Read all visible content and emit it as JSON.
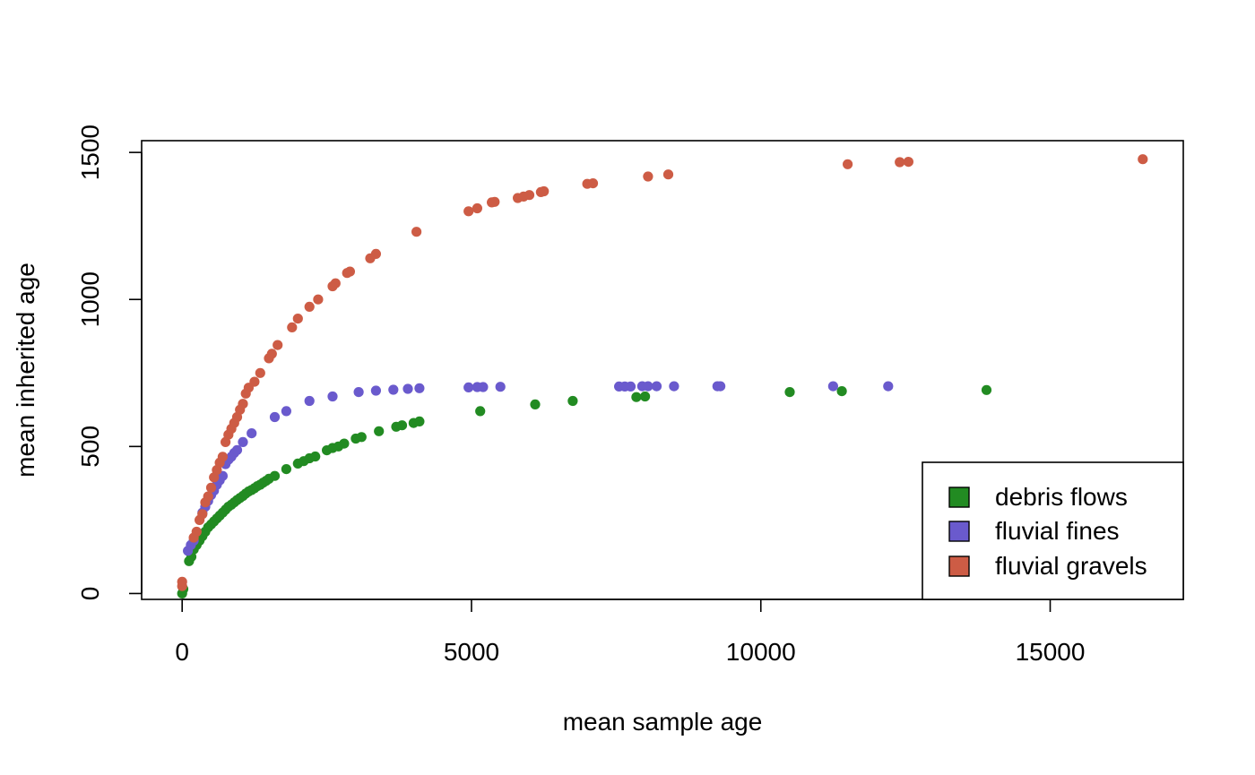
{
  "chart_data": {
    "type": "scatter",
    "xlabel": "mean sample age",
    "ylabel": "mean inherited age",
    "xlim": [
      -700,
      17300
    ],
    "ylim": [
      -20,
      1540
    ],
    "xticks": [
      0,
      5000,
      10000,
      15000
    ],
    "xtick_labels": [
      "0",
      "5000",
      "10000",
      "15000"
    ],
    "yticks": [
      0,
      500,
      1000,
      1500
    ],
    "ytick_labels": [
      "0",
      "500",
      "1000",
      "1500"
    ],
    "grid": false,
    "legend_position": "bottom-right",
    "series": [
      {
        "name": "debris flows",
        "color": "#228b22",
        "points": [
          [
            0,
            0
          ],
          [
            20,
            15
          ],
          [
            120,
            110
          ],
          [
            160,
            125
          ],
          [
            200,
            150
          ],
          [
            250,
            165
          ],
          [
            300,
            180
          ],
          [
            350,
            195
          ],
          [
            400,
            210
          ],
          [
            450,
            225
          ],
          [
            500,
            235
          ],
          [
            550,
            245
          ],
          [
            600,
            255
          ],
          [
            650,
            265
          ],
          [
            700,
            275
          ],
          [
            750,
            285
          ],
          [
            800,
            295
          ],
          [
            850,
            302
          ],
          [
            900,
            310
          ],
          [
            950,
            318
          ],
          [
            1000,
            325
          ],
          [
            1050,
            332
          ],
          [
            1100,
            340
          ],
          [
            1150,
            347
          ],
          [
            1200,
            352
          ],
          [
            1250,
            358
          ],
          [
            1300,
            365
          ],
          [
            1350,
            370
          ],
          [
            1400,
            377
          ],
          [
            1450,
            383
          ],
          [
            1500,
            390
          ],
          [
            1600,
            400
          ],
          [
            1800,
            423
          ],
          [
            2000,
            442
          ],
          [
            2100,
            450
          ],
          [
            2200,
            460
          ],
          [
            2300,
            466
          ],
          [
            2500,
            487
          ],
          [
            2600,
            495
          ],
          [
            2700,
            500
          ],
          [
            2800,
            510
          ],
          [
            3000,
            527
          ],
          [
            3100,
            532
          ],
          [
            3400,
            552
          ],
          [
            3700,
            567
          ],
          [
            3800,
            572
          ],
          [
            4000,
            580
          ],
          [
            4100,
            585
          ],
          [
            5150,
            620
          ],
          [
            6100,
            643
          ],
          [
            6750,
            655
          ],
          [
            7850,
            668
          ],
          [
            8000,
            670
          ],
          [
            10500,
            685
          ],
          [
            11400,
            688
          ],
          [
            13900,
            692
          ]
        ]
      },
      {
        "name": "fluvial fines",
        "color": "#6a5acd",
        "points": [
          [
            100,
            145
          ],
          [
            150,
            165
          ],
          [
            200,
            180
          ],
          [
            350,
            275
          ],
          [
            400,
            295
          ],
          [
            450,
            315
          ],
          [
            500,
            335
          ],
          [
            550,
            350
          ],
          [
            600,
            370
          ],
          [
            650,
            385
          ],
          [
            700,
            400
          ],
          [
            750,
            440
          ],
          [
            800,
            455
          ],
          [
            850,
            465
          ],
          [
            900,
            478
          ],
          [
            950,
            488
          ],
          [
            1050,
            515
          ],
          [
            1200,
            545
          ],
          [
            1600,
            600
          ],
          [
            1800,
            620
          ],
          [
            2200,
            655
          ],
          [
            2600,
            670
          ],
          [
            3050,
            685
          ],
          [
            3350,
            690
          ],
          [
            3650,
            693
          ],
          [
            3900,
            696
          ],
          [
            4100,
            698
          ],
          [
            4950,
            701
          ],
          [
            5100,
            702
          ],
          [
            5200,
            702
          ],
          [
            5500,
            703
          ],
          [
            7550,
            704
          ],
          [
            7650,
            704
          ],
          [
            7750,
            704
          ],
          [
            7950,
            705
          ],
          [
            8050,
            705
          ],
          [
            8200,
            705
          ],
          [
            8500,
            705
          ],
          [
            9250,
            705
          ],
          [
            9300,
            705
          ],
          [
            11250,
            705
          ],
          [
            12200,
            705
          ]
        ]
      },
      {
        "name": "fluvial gravels",
        "color": "#cd5c45",
        "points": [
          [
            0,
            25
          ],
          [
            0,
            40
          ],
          [
            200,
            190
          ],
          [
            250,
            210
          ],
          [
            300,
            250
          ],
          [
            350,
            270
          ],
          [
            400,
            310
          ],
          [
            450,
            330
          ],
          [
            500,
            360
          ],
          [
            550,
            395
          ],
          [
            600,
            420
          ],
          [
            650,
            445
          ],
          [
            700,
            465
          ],
          [
            750,
            515
          ],
          [
            800,
            540
          ],
          [
            850,
            560
          ],
          [
            900,
            580
          ],
          [
            950,
            600
          ],
          [
            1000,
            625
          ],
          [
            1050,
            645
          ],
          [
            1100,
            680
          ],
          [
            1150,
            700
          ],
          [
            1250,
            720
          ],
          [
            1350,
            750
          ],
          [
            1500,
            800
          ],
          [
            1550,
            815
          ],
          [
            1650,
            845
          ],
          [
            1900,
            905
          ],
          [
            2000,
            935
          ],
          [
            2200,
            975
          ],
          [
            2350,
            1000
          ],
          [
            2600,
            1045
          ],
          [
            2650,
            1055
          ],
          [
            2850,
            1090
          ],
          [
            2900,
            1095
          ],
          [
            3250,
            1140
          ],
          [
            3350,
            1155
          ],
          [
            4050,
            1230
          ],
          [
            4950,
            1300
          ],
          [
            5100,
            1310
          ],
          [
            5350,
            1330
          ],
          [
            5400,
            1332
          ],
          [
            5800,
            1345
          ],
          [
            5900,
            1350
          ],
          [
            6000,
            1355
          ],
          [
            6200,
            1365
          ],
          [
            6250,
            1368
          ],
          [
            7000,
            1393
          ],
          [
            7100,
            1395
          ],
          [
            8050,
            1418
          ],
          [
            8400,
            1425
          ],
          [
            11500,
            1460
          ],
          [
            12400,
            1467
          ],
          [
            12550,
            1468
          ],
          [
            16600,
            1477
          ]
        ]
      }
    ]
  }
}
